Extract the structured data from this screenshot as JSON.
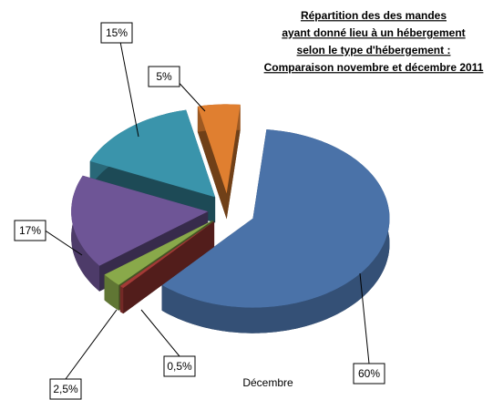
{
  "chart_data": {
    "type": "pie",
    "title": [
      "Répartition des des mandes",
      "ayant donné lieu à un hébergement",
      "selon le type d'hébergement :",
      "Comparaison novembre et décembre 2011"
    ],
    "annotation": "Décembre",
    "values": [
      60,
      0.5,
      2.5,
      17,
      15,
      5
    ],
    "value_labels": [
      "60%",
      "0,5%",
      "2,5%",
      "17%",
      "15%",
      "5%"
    ],
    "colors": [
      "#4a72a8",
      "#a33a36",
      "#89a94a",
      "#6e5596",
      "#3a94ab",
      "#e07f30"
    ]
  }
}
